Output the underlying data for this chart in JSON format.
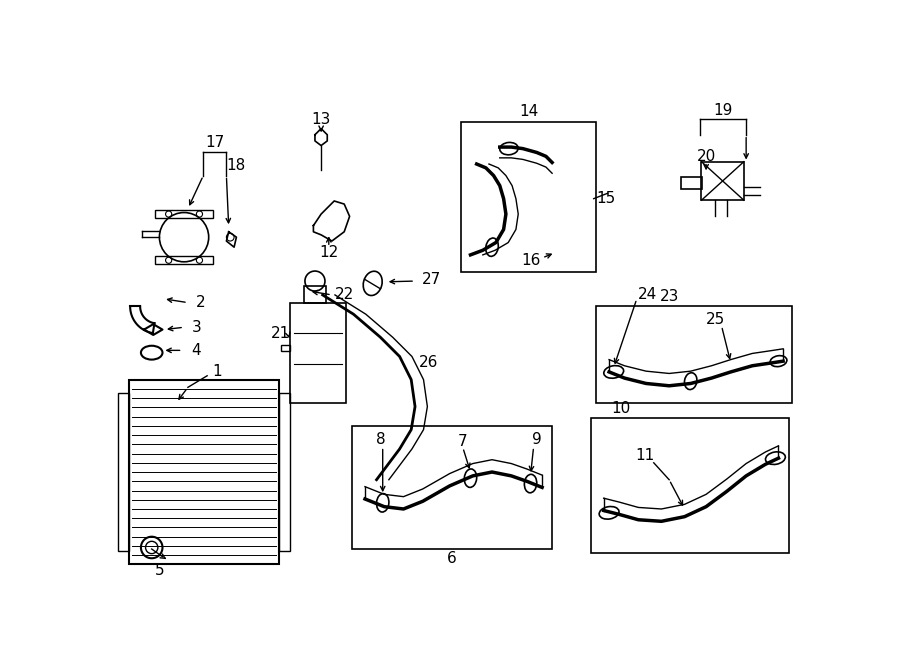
{
  "bg_color": "#ffffff",
  "line_color": "#000000",
  "figsize": [
    9.0,
    6.61
  ],
  "dpi": 100,
  "lw": 1.0,
  "parts_fontsize": 11
}
